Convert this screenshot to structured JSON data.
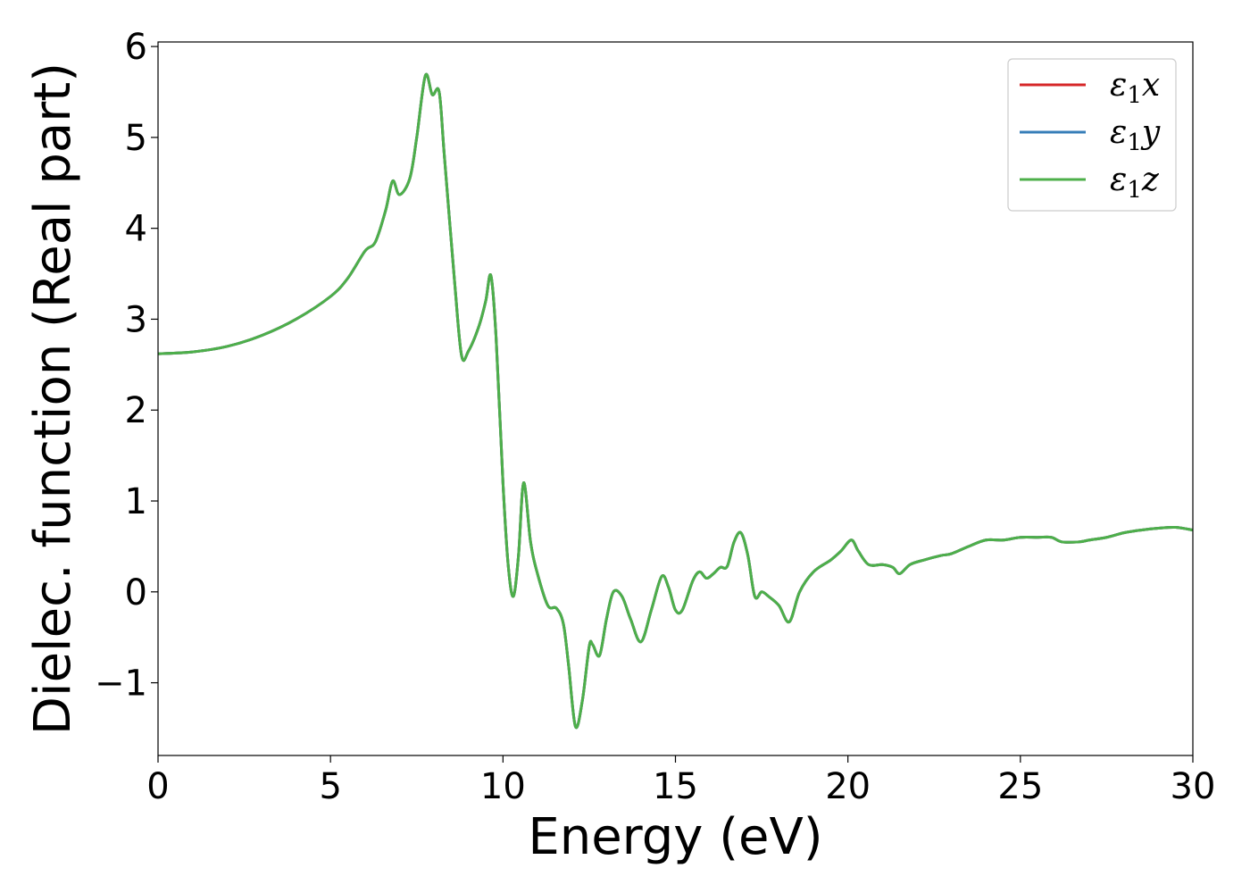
{
  "chart_data": {
    "type": "line",
    "title": "",
    "xlabel": "Energy (eV)",
    "ylabel": "Dielec. function (Real part)",
    "xlim": [
      0,
      30
    ],
    "ylim": [
      -1.8,
      6.05
    ],
    "xticks": [
      0,
      5,
      10,
      15,
      20,
      25,
      30
    ],
    "xtick_labels": [
      "0",
      "5",
      "10",
      "15",
      "20",
      "25",
      "30"
    ],
    "yticks": [
      -1,
      0,
      1,
      2,
      3,
      4,
      5,
      6
    ],
    "ytick_labels": [
      "−1",
      "0",
      "1",
      "2",
      "3",
      "4",
      "5",
      "6"
    ],
    "grid": false,
    "legend_position": "top-right",
    "x": [
      0,
      1,
      2,
      3,
      4,
      5,
      5.5,
      6,
      6.3,
      6.6,
      6.8,
      7.0,
      7.3,
      7.5,
      7.75,
      7.95,
      8.15,
      8.3,
      8.6,
      8.8,
      9.0,
      9.3,
      9.5,
      9.65,
      9.8,
      10.0,
      10.15,
      10.3,
      10.45,
      10.6,
      10.8,
      11.0,
      11.3,
      11.55,
      11.75,
      11.9,
      12.1,
      12.3,
      12.5,
      12.6,
      12.8,
      13.0,
      13.2,
      13.45,
      13.7,
      14.0,
      14.3,
      14.6,
      14.8,
      15.0,
      15.2,
      15.5,
      15.7,
      15.9,
      16.1,
      16.3,
      16.5,
      16.7,
      16.9,
      17.1,
      17.3,
      17.5,
      17.7,
      18.0,
      18.3,
      18.6,
      19.0,
      19.5,
      19.8,
      20.1,
      20.3,
      20.6,
      21.0,
      21.3,
      21.5,
      21.8,
      22.2,
      22.7,
      23.0,
      23.5,
      24.0,
      24.5,
      25.0,
      25.5,
      25.9,
      26.2,
      26.7,
      27.0,
      27.5,
      28.0,
      28.5,
      29.0,
      29.5,
      30.0
    ],
    "series": [
      {
        "name": "ε1x",
        "color": "#d62728",
        "y": [
          2.62,
          2.64,
          2.7,
          2.82,
          3.0,
          3.25,
          3.45,
          3.75,
          3.85,
          4.2,
          4.52,
          4.37,
          4.55,
          5.0,
          5.68,
          5.47,
          5.5,
          4.8,
          3.4,
          2.6,
          2.65,
          2.92,
          3.2,
          3.48,
          2.8,
          1.2,
          0.3,
          -0.05,
          0.4,
          1.2,
          0.55,
          0.2,
          -0.15,
          -0.18,
          -0.35,
          -0.8,
          -1.48,
          -1.2,
          -0.6,
          -0.58,
          -0.7,
          -0.3,
          0.0,
          -0.05,
          -0.3,
          -0.55,
          -0.2,
          0.17,
          0.05,
          -0.2,
          -0.2,
          0.12,
          0.22,
          0.15,
          0.2,
          0.27,
          0.28,
          0.55,
          0.65,
          0.4,
          -0.05,
          0.0,
          -0.05,
          -0.15,
          -0.33,
          0.0,
          0.22,
          0.35,
          0.45,
          0.57,
          0.45,
          0.3,
          0.3,
          0.27,
          0.2,
          0.3,
          0.35,
          0.4,
          0.42,
          0.5,
          0.57,
          0.57,
          0.6,
          0.6,
          0.6,
          0.55,
          0.55,
          0.57,
          0.6,
          0.65,
          0.68,
          0.7,
          0.71,
          0.68
        ]
      },
      {
        "name": "ε1y",
        "color": "#377eb8",
        "y": [
          2.62,
          2.64,
          2.7,
          2.82,
          3.0,
          3.25,
          3.45,
          3.75,
          3.85,
          4.2,
          4.52,
          4.37,
          4.55,
          5.0,
          5.68,
          5.47,
          5.5,
          4.8,
          3.4,
          2.6,
          2.65,
          2.92,
          3.2,
          3.48,
          2.8,
          1.2,
          0.3,
          -0.05,
          0.4,
          1.2,
          0.55,
          0.2,
          -0.15,
          -0.18,
          -0.35,
          -0.8,
          -1.48,
          -1.2,
          -0.6,
          -0.58,
          -0.7,
          -0.3,
          0.0,
          -0.05,
          -0.3,
          -0.55,
          -0.2,
          0.17,
          0.05,
          -0.2,
          -0.2,
          0.12,
          0.22,
          0.15,
          0.2,
          0.27,
          0.28,
          0.55,
          0.65,
          0.4,
          -0.05,
          0.0,
          -0.05,
          -0.15,
          -0.33,
          0.0,
          0.22,
          0.35,
          0.45,
          0.57,
          0.45,
          0.3,
          0.3,
          0.27,
          0.2,
          0.3,
          0.35,
          0.4,
          0.42,
          0.5,
          0.57,
          0.57,
          0.6,
          0.6,
          0.6,
          0.55,
          0.55,
          0.57,
          0.6,
          0.65,
          0.68,
          0.7,
          0.71,
          0.68
        ]
      },
      {
        "name": "ε1z",
        "color": "#4daf4a",
        "y": [
          2.62,
          2.64,
          2.7,
          2.82,
          3.0,
          3.25,
          3.45,
          3.75,
          3.85,
          4.2,
          4.52,
          4.37,
          4.55,
          5.0,
          5.68,
          5.47,
          5.5,
          4.8,
          3.4,
          2.6,
          2.65,
          2.92,
          3.2,
          3.48,
          2.8,
          1.2,
          0.3,
          -0.05,
          0.4,
          1.2,
          0.55,
          0.2,
          -0.15,
          -0.18,
          -0.35,
          -0.8,
          -1.48,
          -1.2,
          -0.6,
          -0.58,
          -0.7,
          -0.3,
          0.0,
          -0.05,
          -0.3,
          -0.55,
          -0.2,
          0.17,
          0.05,
          -0.2,
          -0.2,
          0.12,
          0.22,
          0.15,
          0.2,
          0.27,
          0.28,
          0.55,
          0.65,
          0.4,
          -0.05,
          0.0,
          -0.05,
          -0.15,
          -0.33,
          0.0,
          0.22,
          0.35,
          0.45,
          0.57,
          0.45,
          0.3,
          0.3,
          0.27,
          0.2,
          0.3,
          0.35,
          0.4,
          0.42,
          0.5,
          0.57,
          0.57,
          0.6,
          0.6,
          0.6,
          0.55,
          0.55,
          0.57,
          0.6,
          0.65,
          0.68,
          0.7,
          0.71,
          0.68
        ]
      }
    ],
    "legend": [
      {
        "symbol": "ε",
        "subscript": "1",
        "suffix": "x",
        "color": "#d62728"
      },
      {
        "symbol": "ε",
        "subscript": "1",
        "suffix": "y",
        "color": "#377eb8"
      },
      {
        "symbol": "ε",
        "subscript": "1",
        "suffix": "z",
        "color": "#4daf4a"
      }
    ]
  }
}
